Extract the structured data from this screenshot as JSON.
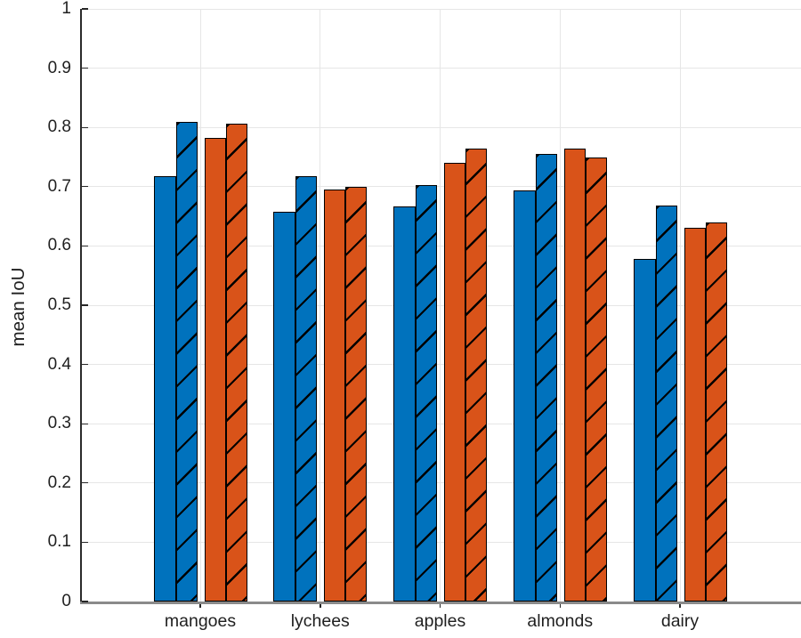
{
  "chart_data": {
    "type": "bar",
    "title": "",
    "xlabel": "",
    "ylabel": "mean IoU",
    "categories": [
      "mangoes",
      "lychees",
      "apples",
      "almonds",
      "dairy"
    ],
    "series": [
      {
        "name": "blue-solid",
        "color": "#0072BD",
        "hatch": false,
        "values": [
          0.718,
          0.657,
          0.667,
          0.693,
          0.578
        ]
      },
      {
        "name": "blue-hatched",
        "color": "#0072BD",
        "hatch": true,
        "values": [
          0.81,
          0.718,
          0.702,
          0.755,
          0.668
        ]
      },
      {
        "name": "orange-solid",
        "color": "#D95319",
        "hatch": false,
        "values": [
          0.782,
          0.695,
          0.74,
          0.765,
          0.63
        ]
      },
      {
        "name": "orange-hatched",
        "color": "#D95319",
        "hatch": true,
        "values": [
          0.806,
          0.7,
          0.765,
          0.75,
          0.64
        ]
      }
    ],
    "ylim": [
      0,
      1
    ],
    "yticks": [
      0,
      0.1,
      0.2,
      0.3,
      0.4,
      0.5,
      0.6,
      0.7,
      0.8,
      0.9,
      1
    ],
    "ytick_labels": [
      "0",
      "0.1",
      "0.2",
      "0.3",
      "0.4",
      "0.5",
      "0.6",
      "0.7",
      "0.8",
      "0.9",
      "1"
    ],
    "grid": true,
    "legend": null,
    "colors": {
      "bar_edge": "#000000",
      "grid": "#e6e6e6",
      "axis_left": "#2b2b2b",
      "axis_bottom": "#8a8a8a",
      "text": "#1f1f1f",
      "hatch_line": "#000000"
    }
  }
}
